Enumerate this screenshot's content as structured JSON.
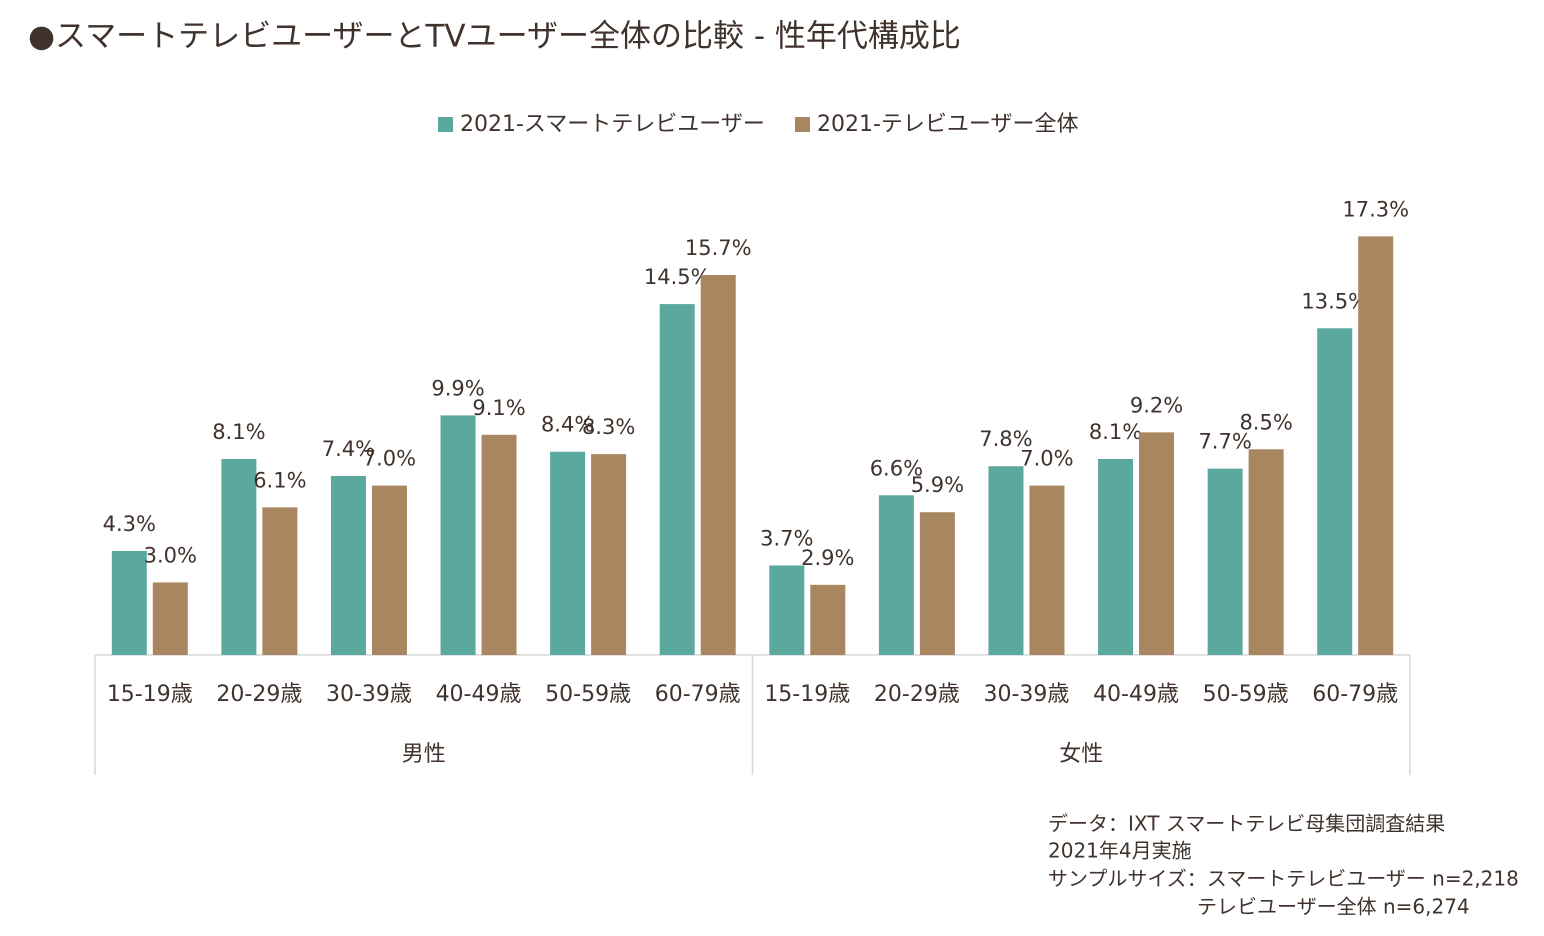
{
  "chart_data": {
    "type": "bar",
    "title": "●スマートテレビユーザーとTVユーザー全体の比較 - 性年代構成比",
    "categories": [
      "15-19歳",
      "20-29歳",
      "30-39歳",
      "40-49歳",
      "50-59歳",
      "60-79歳",
      "15-19歳",
      "20-29歳",
      "30-39歳",
      "40-49歳",
      "50-59歳",
      "60-79歳"
    ],
    "groups": [
      "男性",
      "女性"
    ],
    "series": [
      {
        "name": "2021-スマートテレビユーザー",
        "color": "#5ba89e",
        "values": [
          4.3,
          8.1,
          7.4,
          9.9,
          8.4,
          14.5,
          3.7,
          6.6,
          7.8,
          8.1,
          7.7,
          13.5
        ],
        "value_labels": [
          "4.3%",
          "8.1%",
          "7.4%",
          "9.9%",
          "8.4%",
          "14.5%",
          "3.7%",
          "6.6%",
          "7.8%",
          "8.1%",
          "7.7%",
          "13.5%"
        ]
      },
      {
        "name": "2021-テレビユーザー全体",
        "color": "#a8865f",
        "values": [
          3.0,
          6.1,
          7.0,
          9.1,
          8.3,
          15.7,
          2.9,
          5.9,
          7.0,
          9.2,
          8.5,
          17.3
        ],
        "value_labels": [
          "3.0%",
          "6.1%",
          "7.0%",
          "9.1%",
          "8.3%",
          "15.7%",
          "2.9%",
          "5.9%",
          "7.0%",
          "9.2%",
          "8.5%",
          "17.3%"
        ]
      }
    ],
    "legend": "top",
    "note": [
      "データ：IXT スマートテレビ母集団調査結果",
      "2021年4月実施",
      "サンプルサイズ：スマートテレビユーザー n=2,218",
      "テレビユーザー全体 n=6,274"
    ]
  }
}
